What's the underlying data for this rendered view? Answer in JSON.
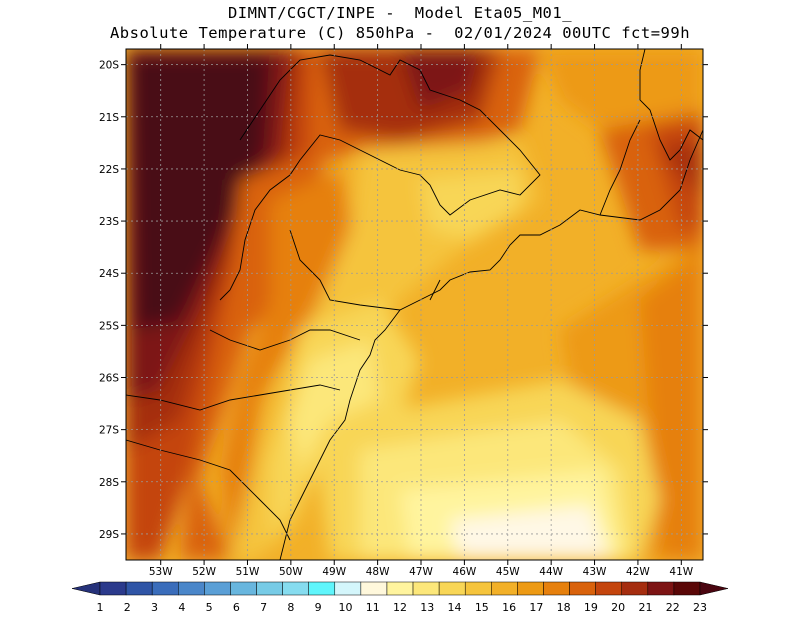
{
  "title": {
    "line1": "DIMNT/CGCT/INPE -  Model Eta05_M01_",
    "line2": "Absolute Temperature (C) 850hPa -  02/01/2024 00UTC fct=99h"
  },
  "map": {
    "lat_labels": [
      "20S",
      "21S",
      "22S",
      "23S",
      "24S",
      "25S",
      "26S",
      "27S",
      "28S",
      "29S"
    ],
    "lon_labels": [
      "53W",
      "52W",
      "51W",
      "50W",
      "49W",
      "48W",
      "47W",
      "46W",
      "45W",
      "44W",
      "43W",
      "42W",
      "41W"
    ],
    "lat_values": [
      -20,
      -21,
      -22,
      -23,
      -24,
      -25,
      -26,
      -27,
      -28,
      -29
    ],
    "lon_values": [
      -53,
      -52,
      -51,
      -50,
      -49,
      -48,
      -47,
      -46,
      -45,
      -44,
      -43,
      -42,
      -41
    ],
    "extent": {
      "lon_min": -53.8,
      "lon_max": -40.5,
      "lat_min": -29.5,
      "lat_max": -19.7
    },
    "variable": "Absolute Temperature (C) 850hPa"
  },
  "colorbar": {
    "labels": [
      "1",
      "2",
      "3",
      "4",
      "5",
      "6",
      "7",
      "8",
      "9",
      "10",
      "11",
      "12",
      "13",
      "14",
      "15",
      "16",
      "17",
      "18",
      "19",
      "20",
      "21",
      "22",
      "23"
    ],
    "colors": [
      "#2b3a8c",
      "#2f55a6",
      "#3a6dbb",
      "#4a86c9",
      "#5a9fd6",
      "#68b6de",
      "#77cbe6",
      "#86dcef",
      "#5ff5fb",
      "#d4f6fb",
      "#fff8dc",
      "#fff49e",
      "#fce77a",
      "#f8d656",
      "#f5c43c",
      "#f2b028",
      "#ed9a14",
      "#e6800d",
      "#d9620c",
      "#c4450d",
      "#a52d0f",
      "#7d1414",
      "#5a0707"
    ],
    "end_left_color": "#26327a",
    "end_right_color": "#4a0510"
  }
}
